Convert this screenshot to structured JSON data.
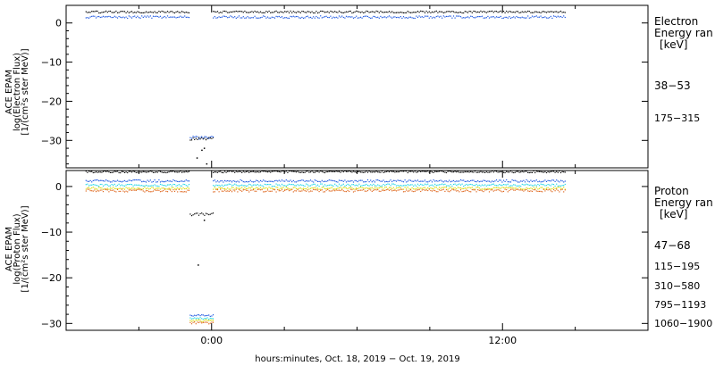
{
  "colors": {
    "black": "#000000",
    "blue": "#1c56e0",
    "cyan": "#22d6e6",
    "yellow": "#d8d800",
    "orange": "#e06820",
    "background": "#ffffff"
  },
  "chart_data": [
    {
      "type": "scatter",
      "panel": "electron",
      "ylabel": [
        "ACE EPAM",
        "log(Electron Flux)",
        "[1/(cm²s ster MeV)]"
      ],
      "ylim": [
        -37,
        4.5
      ],
      "yticks": [
        0,
        -10,
        -20,
        -30
      ],
      "ytick_labels": [
        "0",
        "−10",
        "−20",
        "−30"
      ],
      "legend_title": [
        "Electron",
        "Energy ran",
        "[keV]"
      ],
      "series": [
        {
          "name": "38−53",
          "color": "#000000",
          "segments": [
            {
              "x_start": -5.2,
              "x_end": -0.9,
              "level": 2.8,
              "jitter": 0.25
            },
            {
              "x_start": 0.05,
              "x_end": 14.6,
              "level": 2.8,
              "jitter": 0.25
            }
          ],
          "gap_points": [
            {
              "x_start": -0.9,
              "x_end": 0.05,
              "level": -29.6,
              "jitter": 0.35
            },
            {
              "x": -0.6,
              "y": -34.5
            },
            {
              "x": -0.4,
              "y": -32.5
            },
            {
              "x": -0.3,
              "y": -32.0
            },
            {
              "x": -0.2,
              "y": -36.0
            }
          ]
        },
        {
          "name": "175−315",
          "color": "#1c56e0",
          "segments": [
            {
              "x_start": -5.2,
              "x_end": -0.9,
              "level": 1.5,
              "jitter": 0.3
            },
            {
              "x_start": 0.05,
              "x_end": 14.6,
              "level": 1.5,
              "jitter": 0.3
            }
          ],
          "gap_points": [
            {
              "x_start": -0.9,
              "x_end": 0.05,
              "level": -29.3,
              "jitter": 0.4
            }
          ]
        }
      ]
    },
    {
      "type": "scatter",
      "panel": "proton",
      "ylabel": [
        "ACE EPAM",
        "log(Proton Flux)",
        "[1/(cm²s ster MeV)]"
      ],
      "ylim": [
        -31.5,
        3.5
      ],
      "yticks": [
        0,
        -10,
        -20,
        -30
      ],
      "ytick_labels": [
        "0",
        "−10",
        "−20",
        "−30"
      ],
      "legend_title": [
        "Proton",
        "Energy ran",
        "[keV]"
      ],
      "series": [
        {
          "name": "47−68",
          "color": "#000000",
          "segments": [
            {
              "x_start": -5.2,
              "x_end": -0.9,
              "level": 3.2,
              "jitter": 0.2
            },
            {
              "x_start": 0.05,
              "x_end": 14.6,
              "level": 3.2,
              "jitter": 0.2
            }
          ],
          "gap_points": [
            {
              "x_start": -0.9,
              "x_end": 0.05,
              "level": -6.1,
              "jitter": 0.3
            },
            {
              "x": -0.3,
              "y": -7.4
            },
            {
              "x": -0.55,
              "y": -17.2
            }
          ]
        },
        {
          "name": "115−195",
          "color": "#1c56e0",
          "segments": [
            {
              "x_start": -5.2,
              "x_end": -0.9,
              "level": 1.2,
              "jitter": 0.25
            },
            {
              "x_start": 0.05,
              "x_end": 14.6,
              "level": 1.2,
              "jitter": 0.25
            }
          ],
          "gap_points": [
            {
              "x_start": -0.9,
              "x_end": 0.05,
              "level": -28.3,
              "jitter": 0.2
            }
          ]
        },
        {
          "name": "310−580",
          "color": "#22d6e6",
          "segments": [
            {
              "x_start": -5.2,
              "x_end": -0.9,
              "level": 0.3,
              "jitter": 0.25
            },
            {
              "x_start": 0.05,
              "x_end": 14.6,
              "level": 0.3,
              "jitter": 0.25
            }
          ],
          "gap_points": [
            {
              "x_start": -0.9,
              "x_end": 0.05,
              "level": -28.9,
              "jitter": 0.2
            }
          ]
        },
        {
          "name": "795−1193",
          "color": "#d8d800",
          "segments": [
            {
              "x_start": -5.2,
              "x_end": -0.9,
              "level": -0.4,
              "jitter": 0.25
            },
            {
              "x_start": 0.05,
              "x_end": 14.6,
              "level": -0.4,
              "jitter": 0.25
            }
          ],
          "gap_points": [
            {
              "x_start": -0.9,
              "x_end": 0.05,
              "level": -29.4,
              "jitter": 0.2
            }
          ]
        },
        {
          "name": "1060−1900",
          "color": "#e06820",
          "segments": [
            {
              "x_start": -5.2,
              "x_end": -0.9,
              "level": -0.9,
              "jitter": 0.3
            },
            {
              "x_start": 0.05,
              "x_end": 14.6,
              "level": -0.9,
              "jitter": 0.3
            }
          ],
          "gap_points": [
            {
              "x_start": -0.9,
              "x_end": 0.05,
              "level": -29.9,
              "jitter": 0.25
            }
          ]
        }
      ]
    }
  ],
  "x_axis": {
    "xlim": [
      -6,
      18
    ],
    "major_ticks": [
      0,
      12
    ],
    "major_labels": [
      "0:00",
      "12:00"
    ],
    "minor_ticks": [
      -3,
      3,
      6,
      9,
      15
    ],
    "xlabel": "hours:minutes, Oct. 18, 2019 − Oct. 19, 2019"
  }
}
